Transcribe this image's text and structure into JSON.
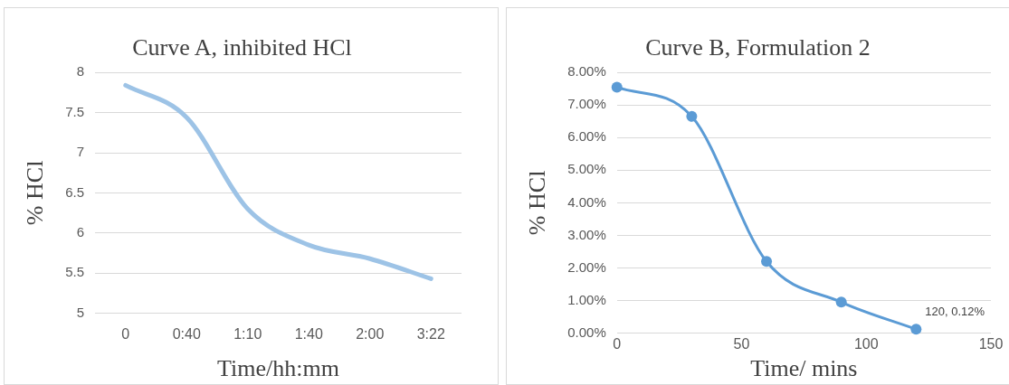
{
  "chart_data": [
    {
      "type": "line",
      "title": "Curve A, inhibited HCl",
      "xlabel": "Time/hh:mm",
      "ylabel": "% HCl",
      "categories": [
        "0",
        "0:40",
        "1:10",
        "1:40",
        "2:00",
        "3:22"
      ],
      "series": [
        {
          "color": "#9dc3e6",
          "values": [
            7.84,
            7.44,
            6.3,
            5.85,
            5.68,
            5.43
          ]
        }
      ],
      "ylim": [
        5,
        8
      ],
      "yticks": [
        5,
        5.5,
        6,
        6.5,
        7,
        7.5,
        8
      ],
      "grid": "y",
      "legend": false,
      "marker": "none",
      "line_style": "solid"
    },
    {
      "type": "line",
      "title": "Curve B, Formulation 2",
      "xlabel": "Time/ mins",
      "ylabel": "% HCl",
      "x": [
        0,
        30,
        60,
        90,
        120
      ],
      "series": [
        {
          "color": "#5b9bd5",
          "values": [
            7.55,
            6.65,
            2.2,
            0.95,
            0.12
          ],
          "value_labels": [
            null,
            null,
            null,
            null,
            "120, 0.12%"
          ]
        }
      ],
      "xlim": [
        0,
        150
      ],
      "xticks": [
        0,
        50,
        100,
        150
      ],
      "ylim": [
        0,
        8
      ],
      "yticks": [
        {
          "value": 0,
          "label": "0.00%"
        },
        {
          "value": 1,
          "label": "1.00%"
        },
        {
          "value": 2,
          "label": "2.00%"
        },
        {
          "value": 3,
          "label": "3.00%"
        },
        {
          "value": 4,
          "label": "4.00%"
        },
        {
          "value": 5,
          "label": "5.00%"
        },
        {
          "value": 6,
          "label": "6.00%"
        },
        {
          "value": 7,
          "label": "7.00%"
        },
        {
          "value": 8,
          "label": "8.00%"
        }
      ],
      "grid": "y",
      "legend": false,
      "marker": "circle",
      "line_style": "solid"
    }
  ]
}
